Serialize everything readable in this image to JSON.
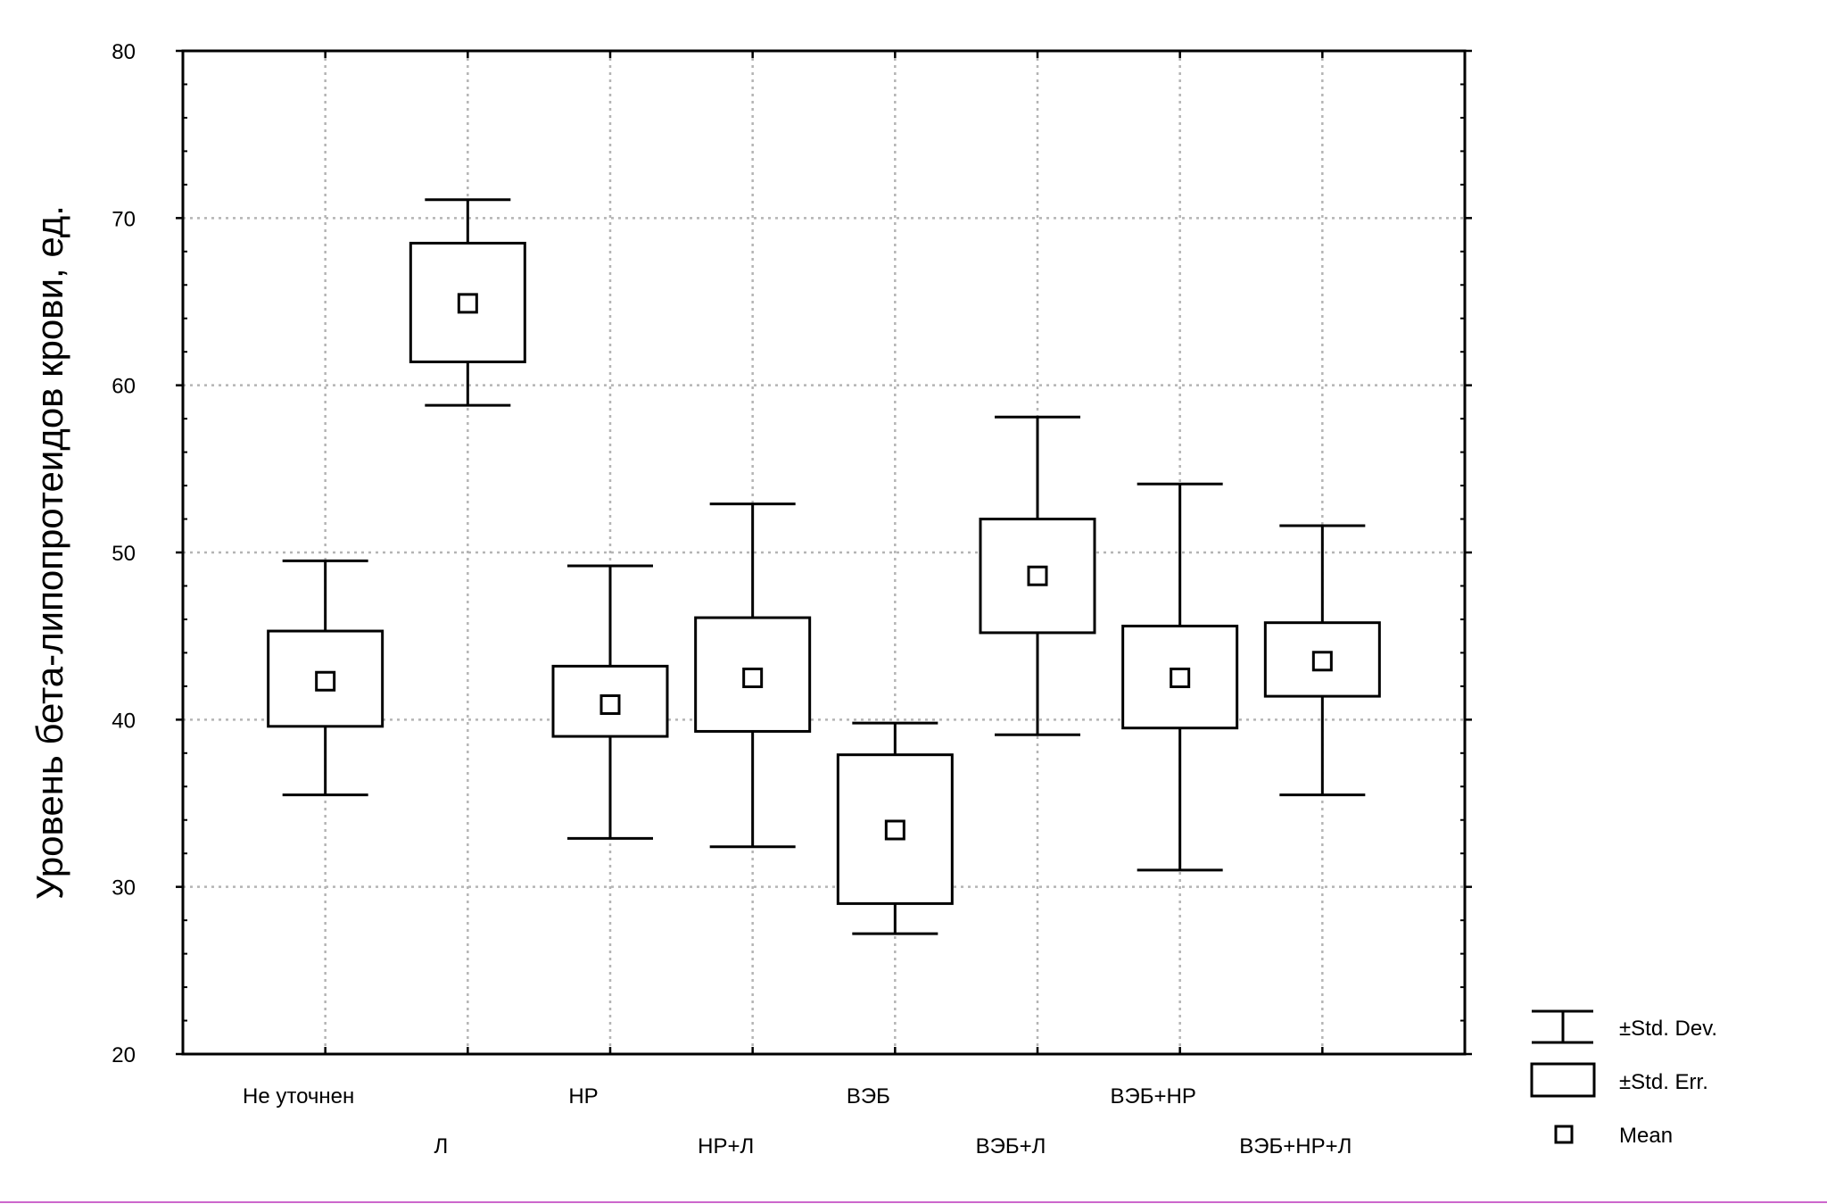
{
  "chart_data": {
    "type": "box",
    "title": "",
    "xlabel": "",
    "ylabel": "Уровень бета-липопротеидов крови, ед.",
    "ylim": [
      20,
      80
    ],
    "yticks": [
      20,
      30,
      40,
      50,
      60,
      70,
      80
    ],
    "grid": true,
    "legend_position": "bottom-right",
    "categories": [
      "Не уточнен",
      "Л",
      "НР",
      "НР+Л",
      "ВЭБ",
      "ВЭБ+Л",
      "ВЭБ+НР",
      "ВЭБ+НР+Л"
    ],
    "series": [
      {
        "mean": [
          42.3,
          64.9,
          40.9,
          42.5,
          33.4,
          48.6,
          42.5,
          43.5
        ],
        "se_low": [
          39.6,
          61.4,
          39.0,
          39.3,
          29.0,
          45.2,
          39.5,
          41.4
        ],
        "se_high": [
          45.3,
          68.5,
          43.2,
          46.1,
          37.9,
          52.0,
          45.6,
          45.8
        ],
        "sd_low": [
          35.5,
          58.8,
          32.9,
          32.4,
          27.2,
          39.1,
          31.0,
          35.5
        ],
        "sd_high": [
          49.5,
          71.1,
          49.2,
          52.9,
          39.8,
          58.1,
          54.1,
          51.6
        ]
      }
    ],
    "legend": [
      {
        "symbol": "whisker",
        "label": "±Std. Dev."
      },
      {
        "symbol": "box",
        "label": "±Std. Err."
      },
      {
        "symbol": "mean",
        "label": "Mean"
      }
    ]
  }
}
